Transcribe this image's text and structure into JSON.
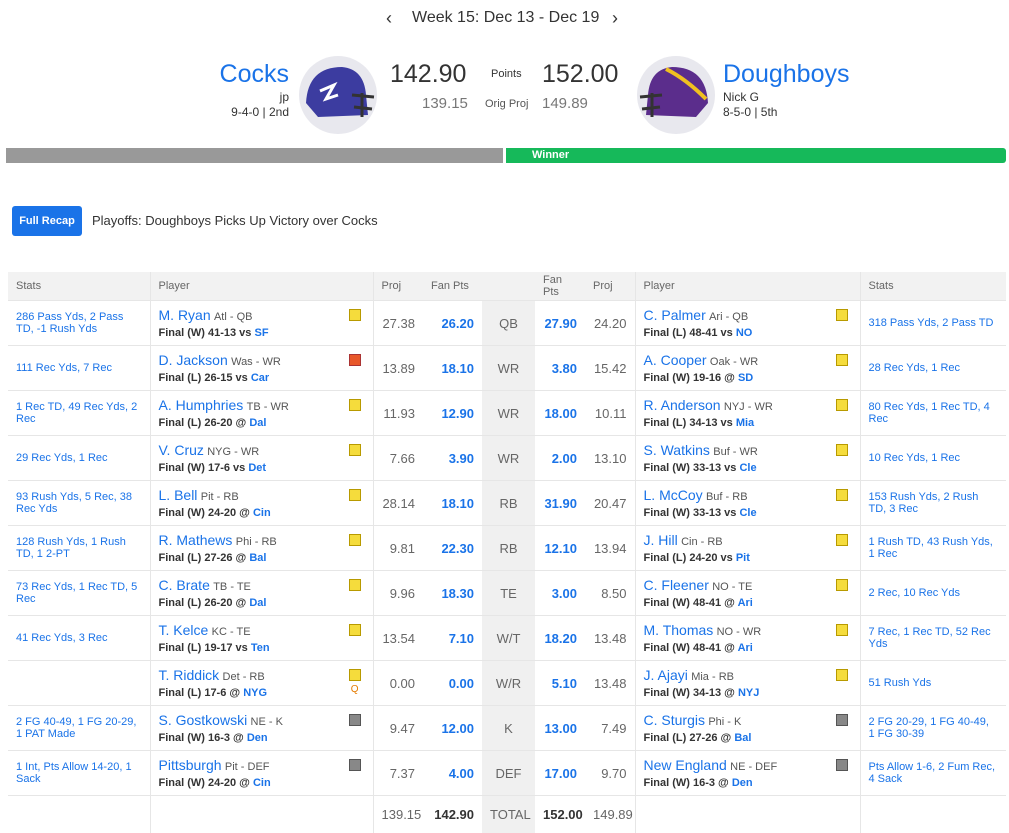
{
  "header": {
    "week": "Week 15: Dec 13 - Dec 19",
    "points_label": "Points",
    "proj_label": "Orig Proj",
    "winner": "Winner"
  },
  "teams": [
    {
      "name": "Cocks",
      "owner": "jp",
      "record": "9-4-0 | 2nd",
      "points": "142.90",
      "proj": "139.15"
    },
    {
      "name": "Doughboys",
      "owner": "Nick G",
      "record": "8-5-0 | 5th",
      "points": "152.00",
      "proj": "149.89"
    }
  ],
  "recap": {
    "button": "Full Recap",
    "headline": "Playoffs: Doughboys Picks Up Victory over Cocks"
  },
  "table": {
    "columns": {
      "stats": "Stats",
      "player": "Player",
      "proj": "Proj",
      "pts": "Fan Pts"
    },
    "rows": [
      {
        "pos": "QB",
        "left": {
          "stats": "286 Pass Yds, 2 Pass TD, -1 Rush Yds",
          "name": "M. Ryan",
          "team": "Atl - QB",
          "result": "Final (W) 41-13 vs",
          "opp": "SF",
          "proj": "27.38",
          "pts": "26.20"
        },
        "right": {
          "stats": "318 Pass Yds, 2 Pass TD",
          "name": "C. Palmer",
          "team": "Ari - QB",
          "result": "Final (L) 48-41 vs",
          "opp": "NO",
          "proj": "24.20",
          "pts": "27.90"
        }
      },
      {
        "pos": "WR",
        "left": {
          "stats": "111 Rec Yds, 7 Rec",
          "name": "D. Jackson",
          "team": "Was - WR",
          "result": "Final (L) 26-15 vs",
          "opp": "Car",
          "proj": "13.89",
          "pts": "18.10"
        },
        "right": {
          "stats": "28 Rec Yds, 1 Rec",
          "name": "A. Cooper",
          "team": "Oak - WR",
          "result": "Final (W) 19-16 @",
          "opp": "SD",
          "proj": "15.42",
          "pts": "3.80"
        }
      },
      {
        "pos": "WR",
        "left": {
          "stats": "1 Rec TD, 49 Rec Yds, 2 Rec",
          "name": "A. Humphries",
          "team": "TB - WR",
          "result": "Final (L) 26-20 @",
          "opp": "Dal",
          "proj": "11.93",
          "pts": "12.90"
        },
        "right": {
          "stats": "80 Rec Yds, 1 Rec TD, 4 Rec",
          "name": "R. Anderson",
          "team": "NYJ - WR",
          "result": "Final (L) 34-13 vs",
          "opp": "Mia",
          "proj": "10.11",
          "pts": "18.00"
        }
      },
      {
        "pos": "WR",
        "left": {
          "stats": "29 Rec Yds, 1 Rec",
          "name": "V. Cruz",
          "team": "NYG - WR",
          "result": "Final (W) 17-6 vs",
          "opp": "Det",
          "proj": "7.66",
          "pts": "3.90"
        },
        "right": {
          "stats": "10 Rec Yds, 1 Rec",
          "name": "S. Watkins",
          "team": "Buf - WR",
          "result": "Final (W) 33-13 vs",
          "opp": "Cle",
          "proj": "13.10",
          "pts": "2.00"
        }
      },
      {
        "pos": "RB",
        "left": {
          "stats": "93 Rush Yds, 5 Rec, 38 Rec Yds",
          "name": "L. Bell",
          "team": "Pit - RB",
          "result": "Final (W) 24-20 @",
          "opp": "Cin",
          "proj": "28.14",
          "pts": "18.10"
        },
        "right": {
          "stats": "153 Rush Yds, 2 Rush TD, 3 Rec",
          "name": "L. McCoy",
          "team": "Buf - RB",
          "result": "Final (W) 33-13 vs",
          "opp": "Cle",
          "proj": "20.47",
          "pts": "31.90"
        }
      },
      {
        "pos": "RB",
        "left": {
          "stats": "128 Rush Yds, 1 Rush TD, 1 2-PT",
          "name": "R. Mathews",
          "team": "Phi - RB",
          "result": "Final (L) 27-26 @",
          "opp": "Bal",
          "proj": "9.81",
          "pts": "22.30"
        },
        "right": {
          "stats": "1 Rush TD, 43 Rush Yds, 1 Rec",
          "name": "J. Hill",
          "team": "Cin - RB",
          "result": "Final (L) 24-20 vs",
          "opp": "Pit",
          "proj": "13.94",
          "pts": "12.10"
        }
      },
      {
        "pos": "TE",
        "left": {
          "stats": "73 Rec Yds, 1 Rec TD, 5 Rec",
          "name": "C. Brate",
          "team": "TB - TE",
          "result": "Final (L) 26-20 @",
          "opp": "Dal",
          "proj": "9.96",
          "pts": "18.30"
        },
        "right": {
          "stats": "2 Rec, 10 Rec Yds",
          "name": "C. Fleener",
          "team": "NO - TE",
          "result": "Final (W) 48-41 @",
          "opp": "Ari",
          "proj": "8.50",
          "pts": "3.00"
        }
      },
      {
        "pos": "W/T",
        "left": {
          "stats": "41 Rec Yds, 3 Rec",
          "name": "T. Kelce",
          "team": "KC - TE",
          "result": "Final (L) 19-17 vs",
          "opp": "Ten",
          "proj": "13.54",
          "pts": "7.10"
        },
        "right": {
          "stats": "7 Rec, 1 Rec TD, 52 Rec Yds",
          "name": "M. Thomas",
          "team": "NO - WR",
          "result": "Final (W) 48-41 @",
          "opp": "Ari",
          "proj": "13.48",
          "pts": "18.20"
        }
      },
      {
        "pos": "W/R",
        "left": {
          "name": "T. Riddick",
          "team": "Det - RB",
          "result": "Final (L) 17-6 @",
          "opp": "NYG",
          "proj": "0.00",
          "pts": "0.00",
          "status": "Q"
        },
        "right": {
          "stats": "51 Rush Yds",
          "name": "J. Ajayi",
          "team": "Mia - RB",
          "result": "Final (W) 34-13 @",
          "opp": "NYJ",
          "proj": "13.48",
          "pts": "5.10"
        }
      },
      {
        "pos": "K",
        "left": {
          "stats": "2 FG 40-49, 1 FG 20-29, 1 PAT Made",
          "name": "S. Gostkowski",
          "team": "NE - K",
          "result": "Final (W) 16-3 @",
          "opp": "Den",
          "proj": "9.47",
          "pts": "12.00"
        },
        "right": {
          "stats": "2 FG 20-29, 1 FG 40-49, 1 FG 30-39",
          "name": "C. Sturgis",
          "team": "Phi - K",
          "result": "Final (L) 27-26 @",
          "opp": "Bal",
          "proj": "7.49",
          "pts": "13.00"
        }
      },
      {
        "pos": "DEF",
        "left": {
          "stats": "1 Int, Pts Allow 14-20, 1 Sack",
          "name": "Pittsburgh",
          "team": "Pit - DEF",
          "result": "Final (W) 24-20 @",
          "opp": "Cin",
          "proj": "7.37",
          "pts": "4.00"
        },
        "right": {
          "stats": "Pts Allow 1-6, 2 Fum Rec, 4 Sack",
          "name": "New England",
          "team": "NE - DEF",
          "result": "Final (W) 16-3 @",
          "opp": "Den",
          "proj": "9.70",
          "pts": "17.00"
        }
      }
    ],
    "total": {
      "label": "TOTAL",
      "left_proj": "139.15",
      "left_pts": "142.90",
      "right_pts": "152.00",
      "right_proj": "149.89"
    }
  }
}
